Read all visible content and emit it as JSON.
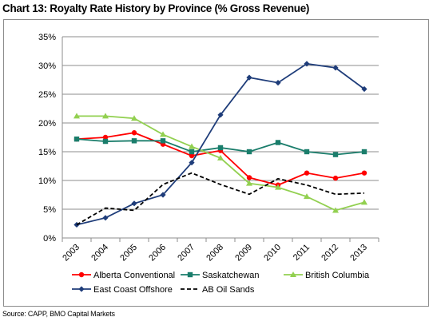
{
  "chart_heading": "Chart 13: Royalty Rate History by Province (% Gross Revenue)",
  "source_note": "Source: CAPP, BMO Capital Markets",
  "chart_data": {
    "type": "line",
    "title": "",
    "xlabel": "",
    "ylabel": "",
    "x": [
      "2003",
      "2004",
      "2005",
      "2006",
      "2007",
      "2008",
      "2009",
      "2010",
      "2011",
      "2012",
      "2013"
    ],
    "ylim": [
      0,
      35
    ],
    "y_ticks": [
      0,
      5,
      10,
      15,
      20,
      25,
      30,
      35
    ],
    "y_tick_labels": [
      "0%",
      "5%",
      "10%",
      "15%",
      "20%",
      "25%",
      "30%",
      "35%"
    ],
    "grid": "horizontal",
    "legend_position": "bottom",
    "series": [
      {
        "name": "Alberta Conventional",
        "color": "#ff0000",
        "marker": "circle",
        "line_style": "solid",
        "values": [
          17.2,
          17.5,
          18.3,
          16.3,
          14.3,
          15.2,
          10.5,
          9.2,
          11.3,
          10.4,
          11.3
        ]
      },
      {
        "name": "Saskatchewan",
        "color": "#1a7d6b",
        "marker": "square",
        "line_style": "solid",
        "values": [
          17.2,
          16.8,
          16.9,
          16.9,
          15.0,
          15.7,
          15.0,
          16.6,
          15.0,
          14.5,
          15.0
        ]
      },
      {
        "name": "British Columbia",
        "color": "#92d050",
        "marker": "triangle",
        "line_style": "solid",
        "values": [
          21.2,
          21.2,
          20.8,
          18.0,
          15.9,
          13.9,
          9.5,
          8.8,
          7.2,
          4.8,
          6.2
        ]
      },
      {
        "name": "East Coast Offshore",
        "color": "#1f3d7a",
        "marker": "diamond",
        "line_style": "solid",
        "values": [
          2.3,
          3.5,
          6.0,
          7.5,
          13.1,
          21.4,
          27.9,
          27.0,
          30.3,
          29.6,
          25.9
        ]
      },
      {
        "name": "AB Oil Sands",
        "color": "#000000",
        "marker": "none",
        "line_style": "dashed",
        "values": [
          2.3,
          5.2,
          4.8,
          9.3,
          11.3,
          9.3,
          7.6,
          10.3,
          9.2,
          7.6,
          7.8
        ]
      }
    ]
  }
}
